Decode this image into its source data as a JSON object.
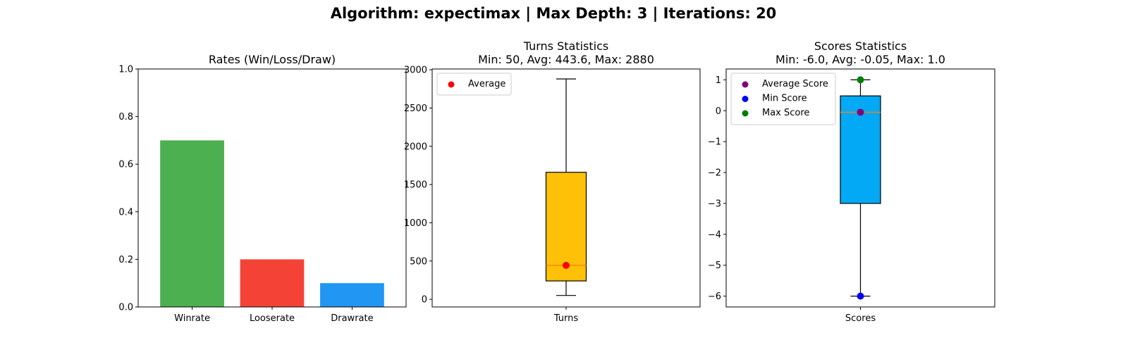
{
  "suptitle": "Algorithm: expectimax | Max Depth: 3 | Iterations: 20",
  "chart_data": [
    {
      "type": "bar",
      "title": "Rates (Win/Loss/Draw)",
      "categories": [
        "Winrate",
        "Looserate",
        "Drawrate"
      ],
      "values": [
        0.7,
        0.2,
        0.1
      ],
      "colors": [
        "#4caf50",
        "#f44336",
        "#2196f3"
      ],
      "ylim": [
        0,
        1.0
      ],
      "yticks": [
        0.0,
        0.2,
        0.4,
        0.6,
        0.8,
        1.0
      ],
      "ytick_labels": [
        "0.0",
        "0.2",
        "0.4",
        "0.6",
        "0.8",
        "1.0"
      ],
      "grid": false
    },
    {
      "type": "boxplot",
      "title": "Turns Statistics",
      "subtitle": "Min: 50, Avg: 443.6, Max: 2880",
      "xlabel_tick": "Turns",
      "box": {
        "whisker_low": 50,
        "q1": 240,
        "median": 443,
        "q3": 1660,
        "whisker_high": 2880,
        "color": "#ffc107",
        "median_color": "#ff7f0e"
      },
      "points": [
        {
          "name": "Average",
          "value": 443.6,
          "color": "#ff0000"
        }
      ],
      "legend": [
        {
          "label": "Average",
          "color": "#ff0000"
        }
      ],
      "legend_position": "top-left",
      "ylim": [
        -100,
        3010
      ],
      "yticks": [
        0,
        500,
        1000,
        1500,
        2000,
        2500,
        3000
      ],
      "ytick_labels": [
        "0",
        "500",
        "1000",
        "1500",
        "2000",
        "2500",
        "3000"
      ],
      "grid": false
    },
    {
      "type": "boxplot",
      "title": "Scores Statistics",
      "subtitle": "Min: -6.0, Avg: -0.05, Max: 1.0",
      "xlabel_tick": "Scores",
      "box": {
        "whisker_low": -6.0,
        "q1": -3.0,
        "median": -0.05,
        "q3": 0.48,
        "whisker_high": 1.0,
        "color": "#03a9f4",
        "median_color": "#ff7f0e"
      },
      "points": [
        {
          "name": "Average Score",
          "value": -0.05,
          "color": "#800080"
        },
        {
          "name": "Min Score",
          "value": -6.0,
          "color": "#0000ff"
        },
        {
          "name": "Max Score",
          "value": 1.0,
          "color": "#008000"
        }
      ],
      "legend": [
        {
          "label": "Average Score",
          "color": "#800080"
        },
        {
          "label": "Min Score",
          "color": "#0000ff"
        },
        {
          "label": "Max Score",
          "color": "#008000"
        }
      ],
      "legend_position": "top-left",
      "ylim": [
        -6.35,
        1.35
      ],
      "yticks": [
        1,
        0,
        -1,
        -2,
        -3,
        -4,
        -5,
        -6
      ],
      "ytick_labels": [
        "1",
        "0",
        "−1",
        "−2",
        "−3",
        "−4",
        "−5",
        "−6"
      ],
      "grid": false
    }
  ]
}
